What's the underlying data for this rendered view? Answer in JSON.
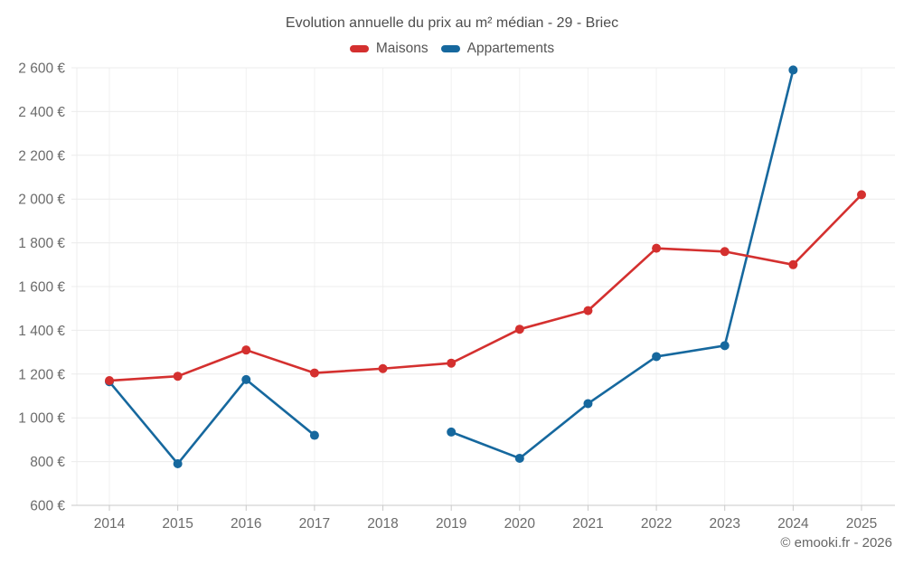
{
  "header": {
    "title": "Evolution annuelle du prix au m² médian - 29 - Briec",
    "legend": [
      {
        "label": "Maisons",
        "color": "#d4302f"
      },
      {
        "label": "Appartements",
        "color": "#16689e"
      }
    ]
  },
  "footer": {
    "attribution": "© emooki.fr - 2026"
  },
  "colors": {
    "maisons": "#d4302f",
    "appartements": "#16689e",
    "gridline": "#ececec",
    "axis_line": "#c9c9c9",
    "tick_label": "#6b6b6b",
    "title_text": "#4d4d4d"
  },
  "chart_data": {
    "type": "line",
    "title": "Evolution annuelle du prix au m² médian - 29 - Briec",
    "x": [
      2014,
      2015,
      2016,
      2017,
      2018,
      2019,
      2020,
      2021,
      2022,
      2023,
      2024,
      2025
    ],
    "series": [
      {
        "name": "Maisons",
        "color": "#d4302f",
        "values": [
          1170,
          1190,
          1310,
          1205,
          1225,
          1250,
          1405,
          1490,
          1775,
          1760,
          1700,
          2020
        ]
      },
      {
        "name": "Appartements",
        "color": "#16689e",
        "values": [
          1165,
          790,
          1175,
          920,
          null,
          935,
          815,
          1065,
          1280,
          1330,
          2590,
          null
        ]
      }
    ],
    "ylim": [
      600,
      2600
    ],
    "y_tick_step": 200,
    "y_tick_suffix": "€",
    "xlabel": "",
    "ylabel": "",
    "grid": true,
    "legend_position": "top",
    "notes": "Appartements series has no data for 2018 and 2025 (line gap)"
  }
}
